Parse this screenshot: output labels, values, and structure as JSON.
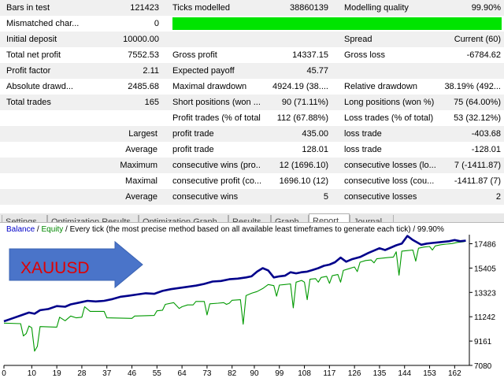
{
  "report": {
    "rows": [
      {
        "label1": "Bars in test",
        "value1": "121423",
        "label2": "Ticks modelled",
        "value2": "38860139",
        "label3": "Modelling quality",
        "value3": "99.90%"
      },
      {
        "label1": "Mismatched char...",
        "value1": "0"
      },
      {
        "label1": "Initial deposit",
        "value1": "10000.00",
        "label3": "Spread",
        "value3": "Current (60)"
      },
      {
        "label1": "Total net profit",
        "value1": "7552.53",
        "label2": "Gross profit",
        "value2": "14337.15",
        "label3": "Gross loss",
        "value3": "-6784.62"
      },
      {
        "label1": "Profit factor",
        "value1": "2.11",
        "label2": "Expected payoff",
        "value2": "45.77"
      },
      {
        "label1": "Absolute drawd...",
        "value1": "2485.68",
        "label2": "Maximal drawdown",
        "value2": "4924.19 (38....",
        "label3": "Relative drawdown",
        "value3": "38.19% (492..."
      },
      {
        "label1": "Total trades",
        "value1": "165",
        "label2": "Short positions (won ...",
        "value2": "90 (71.11%)",
        "label3": "Long positions (won %)",
        "value3": "75 (64.00%)"
      },
      {
        "label2": "Profit trades (% of total)",
        "value2": "112 (67.88%)",
        "label3": "Loss trades (% of total)",
        "value3": "53 (32.12%)"
      },
      {
        "label1": "Largest",
        "label2": "profit trade",
        "value2": "435.00",
        "label3": "loss trade",
        "value3": "-403.68"
      },
      {
        "label1": "Average",
        "label2": "profit trade",
        "value2": "128.01",
        "label3": "loss trade",
        "value3": "-128.01"
      },
      {
        "label1": "Maximum",
        "label2": "consecutive wins (pro...",
        "value2": "12 (1696.10)",
        "label3": "consecutive losses (lo...",
        "value3": "7 (-1411.87)"
      },
      {
        "label1": "Maximal",
        "label2": "consecutive profit (co...",
        "value2": "1696.10 (12)",
        "label3": "consecutive loss (cou...",
        "value3": "-1411.87 (7)"
      },
      {
        "label1": "Average",
        "label2": "consecutive wins",
        "value2": "5",
        "label3": "consecutive losses",
        "value3": "2"
      }
    ],
    "modelling_quality_bar_fraction": 0.999,
    "modelling_quality_bar_color": "#00e400"
  },
  "tabs": {
    "items": [
      "Settings",
      "Optimization Results",
      "Optimization Graph",
      "Results",
      "Graph",
      "Report",
      "Journal"
    ],
    "active": "Report"
  },
  "chart": {
    "legend": {
      "balance": "Balance",
      "slash1": " / ",
      "equity": "Equity",
      "rest": " / Every tick (the most precise method based on all available least timeframes to generate each tick) / 99.90%"
    },
    "arrow_label": "XAUUSD",
    "colors": {
      "balance": "#00008b",
      "equity": "#009900",
      "arrow_fill": "#4a74c9",
      "arrow_text": "#e00000",
      "legend_blue": "#0000c8",
      "legend_green": "#008800"
    }
  },
  "chart_data": {
    "type": "line",
    "x_ticks": [
      0,
      10,
      19,
      28,
      37,
      46,
      55,
      64,
      73,
      82,
      90,
      99,
      108,
      117,
      126,
      135,
      144,
      153,
      162
    ],
    "y_ticks": [
      7080,
      9161,
      11242,
      13323,
      15405,
      17486
    ],
    "xlim": [
      0,
      167
    ],
    "ylim": [
      7080,
      18260
    ],
    "series": [
      {
        "name": "Balance",
        "points": [
          [
            0,
            10850
          ],
          [
            3,
            11100
          ],
          [
            6,
            11350
          ],
          [
            9,
            11600
          ],
          [
            11,
            11500
          ],
          [
            13,
            11800
          ],
          [
            16,
            11900
          ],
          [
            19,
            12150
          ],
          [
            22,
            12100
          ],
          [
            24,
            12300
          ],
          [
            27,
            12450
          ],
          [
            30,
            12600
          ],
          [
            33,
            12550
          ],
          [
            36,
            12600
          ],
          [
            39,
            12750
          ],
          [
            42,
            12950
          ],
          [
            45,
            13050
          ],
          [
            48,
            13150
          ],
          [
            51,
            13250
          ],
          [
            54,
            13200
          ],
          [
            57,
            13450
          ],
          [
            60,
            13600
          ],
          [
            63,
            13700
          ],
          [
            66,
            13800
          ],
          [
            69,
            13900
          ],
          [
            72,
            14050
          ],
          [
            75,
            14250
          ],
          [
            78,
            14300
          ],
          [
            81,
            14450
          ],
          [
            84,
            14500
          ],
          [
            87,
            14600
          ],
          [
            89,
            14700
          ],
          [
            91,
            15100
          ],
          [
            93,
            15400
          ],
          [
            95,
            15200
          ],
          [
            97,
            14600
          ],
          [
            99,
            14700
          ],
          [
            101,
            14750
          ],
          [
            103,
            15050
          ],
          [
            105,
            14950
          ],
          [
            107,
            15050
          ],
          [
            109,
            15100
          ],
          [
            111,
            15250
          ],
          [
            113,
            15400
          ],
          [
            115,
            15600
          ],
          [
            117,
            15700
          ],
          [
            119,
            15900
          ],
          [
            121,
            16300
          ],
          [
            123,
            15950
          ],
          [
            125,
            16150
          ],
          [
            128,
            16350
          ],
          [
            131,
            16700
          ],
          [
            133,
            16900
          ],
          [
            135,
            17100
          ],
          [
            137,
            16950
          ],
          [
            139,
            17150
          ],
          [
            141,
            17350
          ],
          [
            143,
            17500
          ],
          [
            145,
            18150
          ],
          [
            147,
            17800
          ],
          [
            150,
            17400
          ],
          [
            152,
            17500
          ],
          [
            154,
            17550
          ],
          [
            156,
            17600
          ],
          [
            158,
            17650
          ],
          [
            160,
            17700
          ],
          [
            162,
            17800
          ],
          [
            164,
            17700
          ],
          [
            166,
            17750
          ]
        ]
      },
      {
        "name": "Equity",
        "points": [
          [
            0,
            10700
          ],
          [
            6,
            10650
          ],
          [
            7,
            9600
          ],
          [
            8,
            9800
          ],
          [
            9,
            10450
          ],
          [
            10,
            10300
          ],
          [
            11,
            8300
          ],
          [
            12,
            8700
          ],
          [
            13,
            10400
          ],
          [
            19,
            10350
          ],
          [
            20,
            11200
          ],
          [
            22,
            10900
          ],
          [
            24,
            11300
          ],
          [
            26,
            11150
          ],
          [
            28,
            11200
          ],
          [
            29,
            12100
          ],
          [
            31,
            11700
          ],
          [
            36,
            11700
          ],
          [
            37,
            11150
          ],
          [
            46,
            11100
          ],
          [
            47,
            11300
          ],
          [
            54,
            11350
          ],
          [
            55,
            11750
          ],
          [
            57,
            11800
          ],
          [
            58,
            12300
          ],
          [
            61,
            12450
          ],
          [
            63,
            11950
          ],
          [
            64,
            12100
          ],
          [
            66,
            12250
          ],
          [
            68,
            12250
          ],
          [
            69,
            12550
          ],
          [
            72,
            12550
          ],
          [
            73,
            11400
          ],
          [
            74,
            12350
          ],
          [
            77,
            12400
          ],
          [
            79,
            12450
          ],
          [
            80,
            12300
          ],
          [
            81,
            12400
          ],
          [
            82,
            12650
          ],
          [
            85,
            12700
          ],
          [
            86,
            10600
          ],
          [
            87,
            13050
          ],
          [
            89,
            13250
          ],
          [
            91,
            13400
          ],
          [
            93,
            13650
          ],
          [
            95,
            14000
          ],
          [
            97,
            13900
          ],
          [
            98,
            13000
          ],
          [
            99,
            13950
          ],
          [
            101,
            14000
          ],
          [
            103,
            14050
          ],
          [
            104,
            12000
          ],
          [
            105,
            14200
          ],
          [
            107,
            14350
          ],
          [
            108,
            14200
          ],
          [
            109,
            12700
          ],
          [
            110,
            14450
          ],
          [
            112,
            14500
          ],
          [
            113,
            14200
          ],
          [
            114,
            14600
          ],
          [
            116,
            14700
          ],
          [
            117,
            14100
          ],
          [
            118,
            14750
          ],
          [
            120,
            14850
          ],
          [
            121,
            14200
          ],
          [
            122,
            15200
          ],
          [
            124,
            15350
          ],
          [
            126,
            15500
          ],
          [
            127,
            15100
          ],
          [
            128,
            15900
          ],
          [
            130,
            16050
          ],
          [
            132,
            16100
          ],
          [
            133,
            15850
          ],
          [
            134,
            16200
          ],
          [
            136,
            16250
          ],
          [
            138,
            16300
          ],
          [
            140,
            16350
          ],
          [
            141,
            16800
          ],
          [
            142,
            14800
          ],
          [
            143,
            16850
          ],
          [
            145,
            16900
          ],
          [
            147,
            16950
          ],
          [
            148,
            16000
          ],
          [
            149,
            17100
          ],
          [
            151,
            17200
          ],
          [
            153,
            17250
          ],
          [
            154,
            16950
          ],
          [
            155,
            17300
          ],
          [
            157,
            17400
          ],
          [
            159,
            17450
          ],
          [
            161,
            17500
          ],
          [
            163,
            17600
          ],
          [
            165,
            17650
          ],
          [
            166,
            17700
          ]
        ]
      }
    ]
  }
}
